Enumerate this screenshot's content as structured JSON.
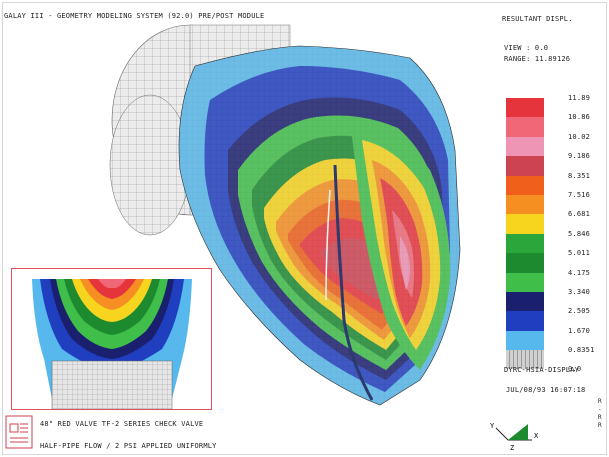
{
  "header": {
    "title": "GALAY III - GEOMETRY MODELING SYSTEM (92.0) PRE/POST MODULE"
  },
  "panel": {
    "title": "RESULTANT DISPL.",
    "view": "VIEW : 0.0",
    "range": "RANGE: 11.89126"
  },
  "legend": {
    "values": [
      "11.89",
      "10.86",
      "10.02",
      "9.186",
      "8.351",
      "7.516",
      "6.681",
      "5.846",
      "5.011",
      "4.175",
      "3.340",
      "2.505",
      "1.670",
      "0.8351",
      "0.0"
    ],
    "colors": [
      "#e5343b",
      "#f06878",
      "#ee94b4",
      "#cc4452",
      "#f0601a",
      "#f58f22",
      "#f7d41e",
      "#2aa63a",
      "#1d8a30",
      "#40be4a",
      "#1a1f6e",
      "#1f3ec0",
      "#56b8ec",
      "#bfbfbf"
    ]
  },
  "display_label": "DYRC-HSIA-DISPLAY",
  "date": "JUL/08/93 16:07:18",
  "captions": {
    "line1": "48\" RED VALVE TF-2 SERIES CHECK VALVE",
    "line2": "HALF-PIPE FLOW / 2 PSI APPLIED UNIFORMLY"
  },
  "triad": {
    "x": "X",
    "y": "Y",
    "z": "Z"
  },
  "edge_text": [
    "R",
    "-",
    "R",
    "R"
  ]
}
